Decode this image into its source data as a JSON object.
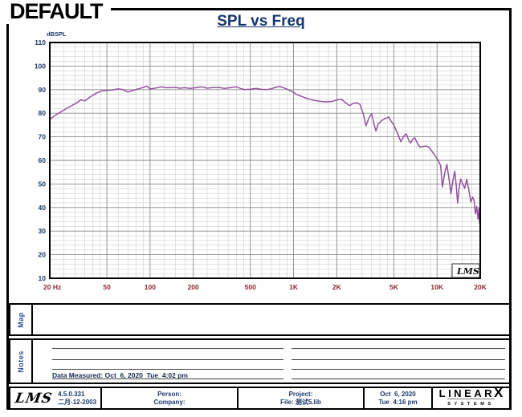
{
  "page": {
    "default_label": "DEFAULT",
    "title": "SPL vs Freq"
  },
  "chart_data": {
    "type": "line",
    "title": "SPL vs Freq",
    "ylabel": "dBSPL",
    "xlabel": "",
    "x_scale": "log",
    "x_range": [
      20,
      20000
    ],
    "y_range": [
      10,
      110
    ],
    "grid": "on",
    "y_ticks": [
      "110",
      "100",
      "90",
      "80",
      "70",
      "60",
      "50",
      "40",
      "30",
      "20",
      "10"
    ],
    "x_ticks": [
      {
        "label": "20 Hz",
        "f": 20
      },
      {
        "label": "50",
        "f": 50
      },
      {
        "label": "100",
        "f": 100
      },
      {
        "label": "200",
        "f": 200
      },
      {
        "label": "500",
        "f": 500
      },
      {
        "label": "1K",
        "f": 1000
      },
      {
        "label": "2K",
        "f": 2000
      },
      {
        "label": "5K",
        "f": 5000
      },
      {
        "label": "10K",
        "f": 10000
      },
      {
        "label": "20K",
        "f": 20000
      }
    ],
    "watermark": "LMS",
    "colors": {
      "curve": "#93519e",
      "y_tick_text": "#1c3a6b",
      "x_tick_text": "#8d2635",
      "grid_major": "#8a8a8a",
      "grid_minor": "#cfcfcf",
      "frame": "#000000"
    },
    "series": [
      {
        "name": "SPL vs Freq",
        "color": "#93519e",
        "points": [
          [
            20,
            77.3
          ],
          [
            22,
            79.3
          ],
          [
            25,
            81.3
          ],
          [
            28,
            83
          ],
          [
            31,
            84.5
          ],
          [
            33,
            85.7
          ],
          [
            35,
            85.2
          ],
          [
            38,
            86.8
          ],
          [
            42,
            88.5
          ],
          [
            46,
            89.4
          ],
          [
            50,
            89.7
          ],
          [
            55,
            89.9
          ],
          [
            60,
            90.3
          ],
          [
            65,
            90
          ],
          [
            70,
            89
          ],
          [
            75,
            89.6
          ],
          [
            80,
            90.1
          ],
          [
            85,
            90.5
          ],
          [
            90,
            91
          ],
          [
            95,
            91.5
          ],
          [
            100,
            90.3
          ],
          [
            110,
            90.7
          ],
          [
            120,
            91.2
          ],
          [
            130,
            90.8
          ],
          [
            140,
            90.9
          ],
          [
            150,
            91
          ],
          [
            160,
            90.6
          ],
          [
            175,
            90.8
          ],
          [
            190,
            90.5
          ],
          [
            210,
            90.9
          ],
          [
            230,
            91.2
          ],
          [
            250,
            90.6
          ],
          [
            270,
            90.9
          ],
          [
            300,
            91
          ],
          [
            330,
            90.5
          ],
          [
            360,
            90.8
          ],
          [
            400,
            91.2
          ],
          [
            430,
            90.4
          ],
          [
            460,
            90
          ],
          [
            500,
            90.2
          ],
          [
            550,
            90.5
          ],
          [
            600,
            90.1
          ],
          [
            650,
            90
          ],
          [
            700,
            90.4
          ],
          [
            750,
            91
          ],
          [
            800,
            91.4
          ],
          [
            850,
            90.8
          ],
          [
            900,
            90.2
          ],
          [
            970,
            89.3
          ],
          [
            1050,
            88
          ],
          [
            1150,
            87
          ],
          [
            1250,
            86.2
          ],
          [
            1400,
            85.4
          ],
          [
            1550,
            85
          ],
          [
            1700,
            84.8
          ],
          [
            1850,
            85
          ],
          [
            2000,
            85.6
          ],
          [
            2150,
            86
          ],
          [
            2300,
            84.5
          ],
          [
            2450,
            83.2
          ],
          [
            2600,
            84.2
          ],
          [
            2750,
            84.4
          ],
          [
            2900,
            83.8
          ],
          [
            3050,
            80
          ],
          [
            3200,
            74.7
          ],
          [
            3350,
            78
          ],
          [
            3500,
            79.8
          ],
          [
            3650,
            75
          ],
          [
            3750,
            72.5
          ],
          [
            3900,
            75.5
          ],
          [
            4100,
            76.8
          ],
          [
            4300,
            77.6
          ],
          [
            4600,
            78.4
          ],
          [
            4800,
            76.5
          ],
          [
            5000,
            75
          ],
          [
            5300,
            71.5
          ],
          [
            5600,
            67.9
          ],
          [
            5900,
            70.5
          ],
          [
            6100,
            71.3
          ],
          [
            6350,
            68.5
          ],
          [
            6550,
            67.4
          ],
          [
            6800,
            69.2
          ],
          [
            7000,
            69.6
          ],
          [
            7300,
            67.2
          ],
          [
            7600,
            65.6
          ],
          [
            8000,
            65.9
          ],
          [
            8400,
            66.1
          ],
          [
            8800,
            65.5
          ],
          [
            9300,
            63.5
          ],
          [
            9800,
            61.5
          ],
          [
            10200,
            60
          ],
          [
            10600,
            57.7
          ],
          [
            10900,
            48.7
          ],
          [
            11300,
            54.5
          ],
          [
            11700,
            58.3
          ],
          [
            12100,
            52.5
          ],
          [
            12500,
            45.8
          ],
          [
            12900,
            51.5
          ],
          [
            13300,
            55.4
          ],
          [
            13600,
            49.5
          ],
          [
            13900,
            41.9
          ],
          [
            14200,
            47.5
          ],
          [
            14600,
            52.1
          ],
          [
            15100,
            50
          ],
          [
            15600,
            48.2
          ],
          [
            16100,
            52
          ],
          [
            16600,
            48
          ],
          [
            17200,
            42.4
          ],
          [
            17700,
            44.5
          ],
          [
            18100,
            43
          ],
          [
            18500,
            37.3
          ],
          [
            18900,
            40.5
          ],
          [
            19300,
            35.1
          ],
          [
            19600,
            39.6
          ],
          [
            19800,
            33.4
          ],
          [
            20000,
            37.5
          ]
        ]
      }
    ]
  },
  "map_section": {
    "label": "Map"
  },
  "notes_section": {
    "label": "Notes",
    "data_measured": "Data Measured: Oct  6, 2020  Tue  4:02 pm"
  },
  "footer": {
    "lms_logo": "LMS",
    "version": "4.5.0.331",
    "version_date": "二月-12-2003",
    "person_label": "Person:",
    "company_label": "Company:",
    "project_label": "Project:",
    "file_label": "File: 测试5.lib",
    "date": "Oct  6, 2020",
    "time": "Tue  4:16 pm",
    "brand": "LINEAR",
    "brand_x": "X",
    "brand_sub": "SYSTEMS"
  }
}
